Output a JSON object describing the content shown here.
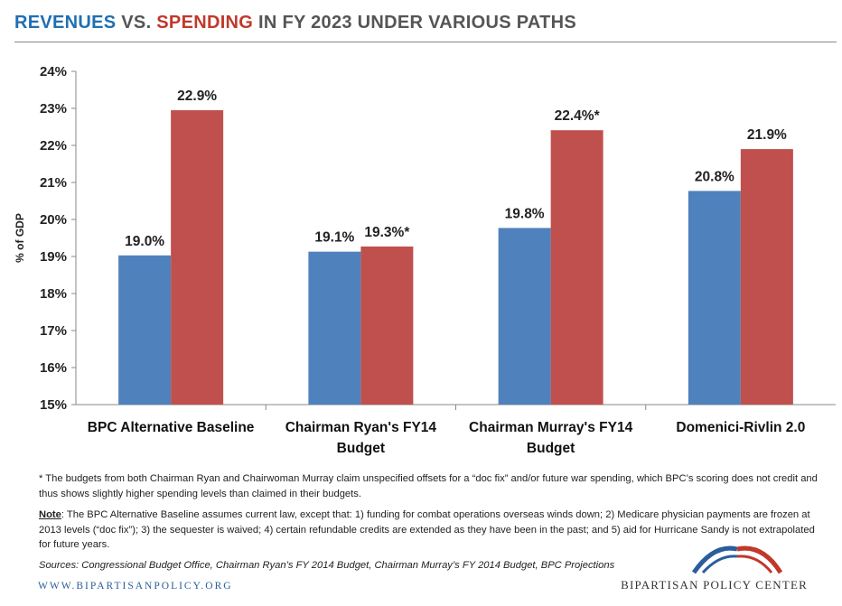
{
  "header": {
    "title_revenues": "REVENUES",
    "title_vs": " VS. ",
    "title_spending": "SPENDING",
    "title_rest": " IN FY 2023 UNDER VARIOUS PATHS"
  },
  "chart_data": {
    "type": "bar",
    "ylabel": "% of GDP",
    "ylim": [
      15,
      24
    ],
    "yticks": [
      "15%",
      "16%",
      "17%",
      "18%",
      "19%",
      "20%",
      "21%",
      "22%",
      "23%",
      "24%"
    ],
    "grid": false,
    "categories": [
      [
        "BPC Alternative Baseline"
      ],
      [
        "Chairman Ryan's FY14",
        "Budget"
      ],
      [
        "Chairman Murray's FY14",
        "Budget"
      ],
      [
        "Domenici-Rivlin 2.0"
      ]
    ],
    "series": [
      {
        "color": "#4f81bd",
        "values": [
          19.03,
          19.13,
          19.77,
          20.77
        ],
        "labels": [
          "19.0%",
          "19.1%",
          "19.8%",
          "20.8%"
        ]
      },
      {
        "color": "#c0504d",
        "values": [
          22.95,
          19.27,
          22.41,
          21.9
        ],
        "labels": [
          "22.9%",
          "19.3%*",
          "22.4%*",
          "21.9%"
        ]
      }
    ]
  },
  "notes": {
    "asterisk": "* The budgets from both Chairman Ryan and Chairwoman Murray claim unspecified offsets for a “doc fix” and/or future war spending, which BPC’s scoring does not credit and thus shows slightly higher spending levels than claimed in their budgets.",
    "note_label": "Note",
    "note_text": ": The BPC Alternative Baseline assumes current law, except that: 1) funding for combat operations overseas winds down; 2) Medicare physician payments are frozen at 2013 levels (“doc fix”); 3) the sequester is waived; 4) certain refundable credits are extended as they have been in the past; and 5) aid for Hurricane Sandy is not extrapolated for future years.",
    "sources": "Sources: Congressional Budget Office, Chairman Ryan’s FY 2014 Budget, Chairman Murray’s FY 2014 Budget, BPC Projections"
  },
  "footer": {
    "website": "WWW.BIPARTISANPOLICY.ORG",
    "org_name": "BIPARTISAN POLICY CENTER"
  }
}
